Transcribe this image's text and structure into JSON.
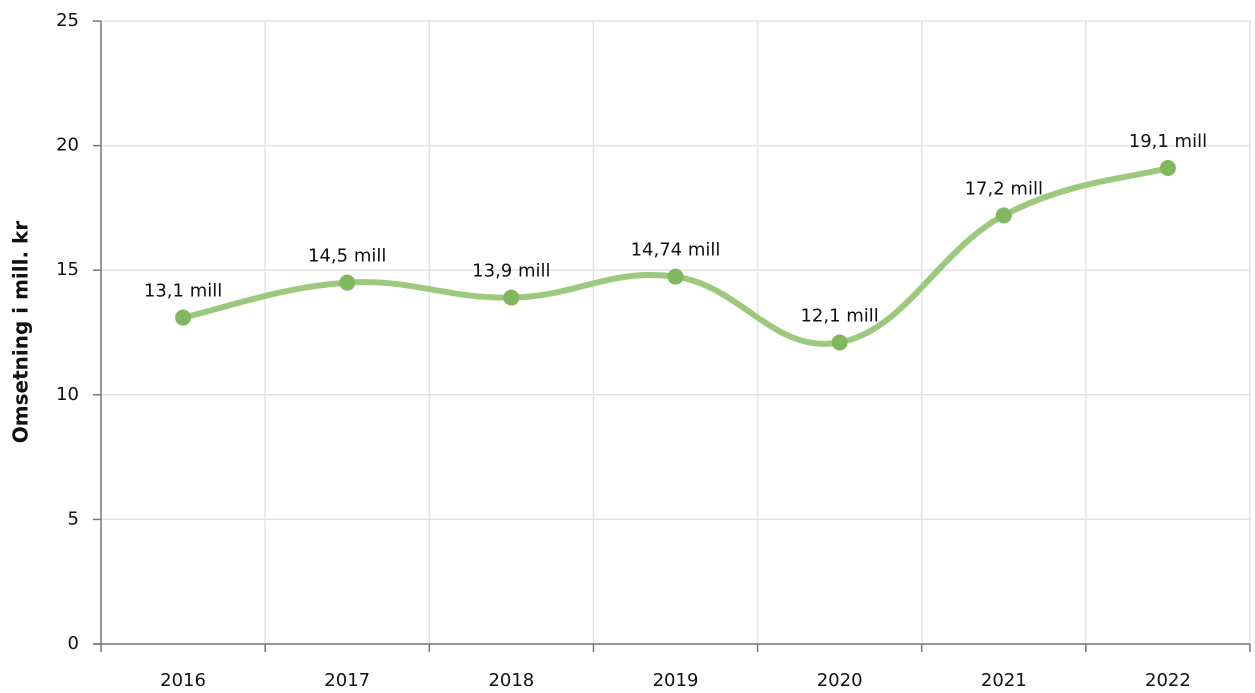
{
  "chart_data": {
    "type": "line",
    "y_label": "Omsetning i mill. kr",
    "categories": [
      "2016",
      "2017",
      "2018",
      "2019",
      "2020",
      "2021",
      "2022"
    ],
    "values": [
      13.1,
      14.5,
      13.9,
      14.74,
      12.1,
      17.2,
      19.1
    ],
    "value_labels": [
      "13,1 mill",
      "14,5 mill",
      "13,9 mill",
      "14,74 mill",
      "12,1 mill",
      "17,2 mill",
      "19,1 mill"
    ],
    "color": "#9dc97f",
    "marker_color": "#80b75f",
    "ylim": [
      0,
      25
    ],
    "yticks": [
      0,
      5,
      10,
      15,
      20,
      25
    ],
    "grid": true
  }
}
